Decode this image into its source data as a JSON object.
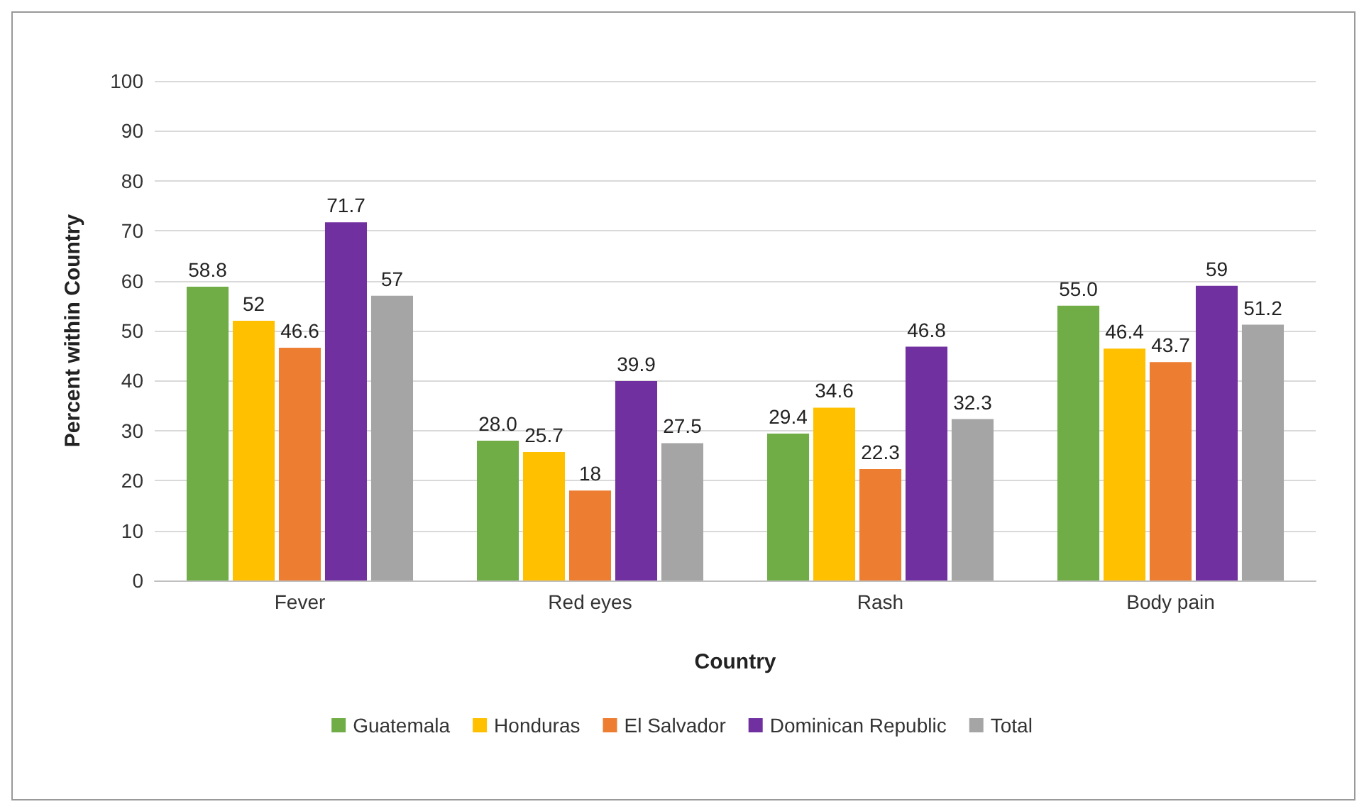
{
  "chart_data": {
    "type": "bar",
    "xlabel": "Country",
    "ylabel": "Percent within Country",
    "categories": [
      "Fever",
      "Red eyes",
      "Rash",
      "Body pain"
    ],
    "series": [
      {
        "name": "Guatemala",
        "color": "#70ad47",
        "values": [
          58.8,
          28.0,
          29.4,
          55.0
        ],
        "value_labels": [
          "58.8",
          "28.0",
          "29.4",
          "55.0"
        ]
      },
      {
        "name": "Honduras",
        "color": "#ffc000",
        "values": [
          52,
          25.7,
          34.6,
          46.4
        ],
        "value_labels": [
          "52",
          "25.7",
          "34.6",
          "46.4"
        ]
      },
      {
        "name": "El Salvador",
        "color": "#ed7d31",
        "values": [
          46.6,
          18,
          22.3,
          43.7
        ],
        "value_labels": [
          "46.6",
          "18",
          "22.3",
          "43.7"
        ]
      },
      {
        "name": "Dominican Republic",
        "color": "#7030a0",
        "values": [
          71.7,
          39.9,
          46.8,
          59
        ],
        "value_labels": [
          "71.7",
          "39.9",
          "46.8",
          "59"
        ]
      },
      {
        "name": "Total",
        "color": "#a5a5a5",
        "values": [
          57,
          27.5,
          32.3,
          51.2
        ],
        "value_labels": [
          "57",
          "27.5",
          "32.3",
          "51.2"
        ]
      }
    ],
    "ylim": [
      0,
      100
    ],
    "yticks": [
      0,
      10,
      20,
      30,
      40,
      50,
      60,
      70,
      80,
      90,
      100
    ],
    "grid": "y",
    "legend": "bottom"
  }
}
